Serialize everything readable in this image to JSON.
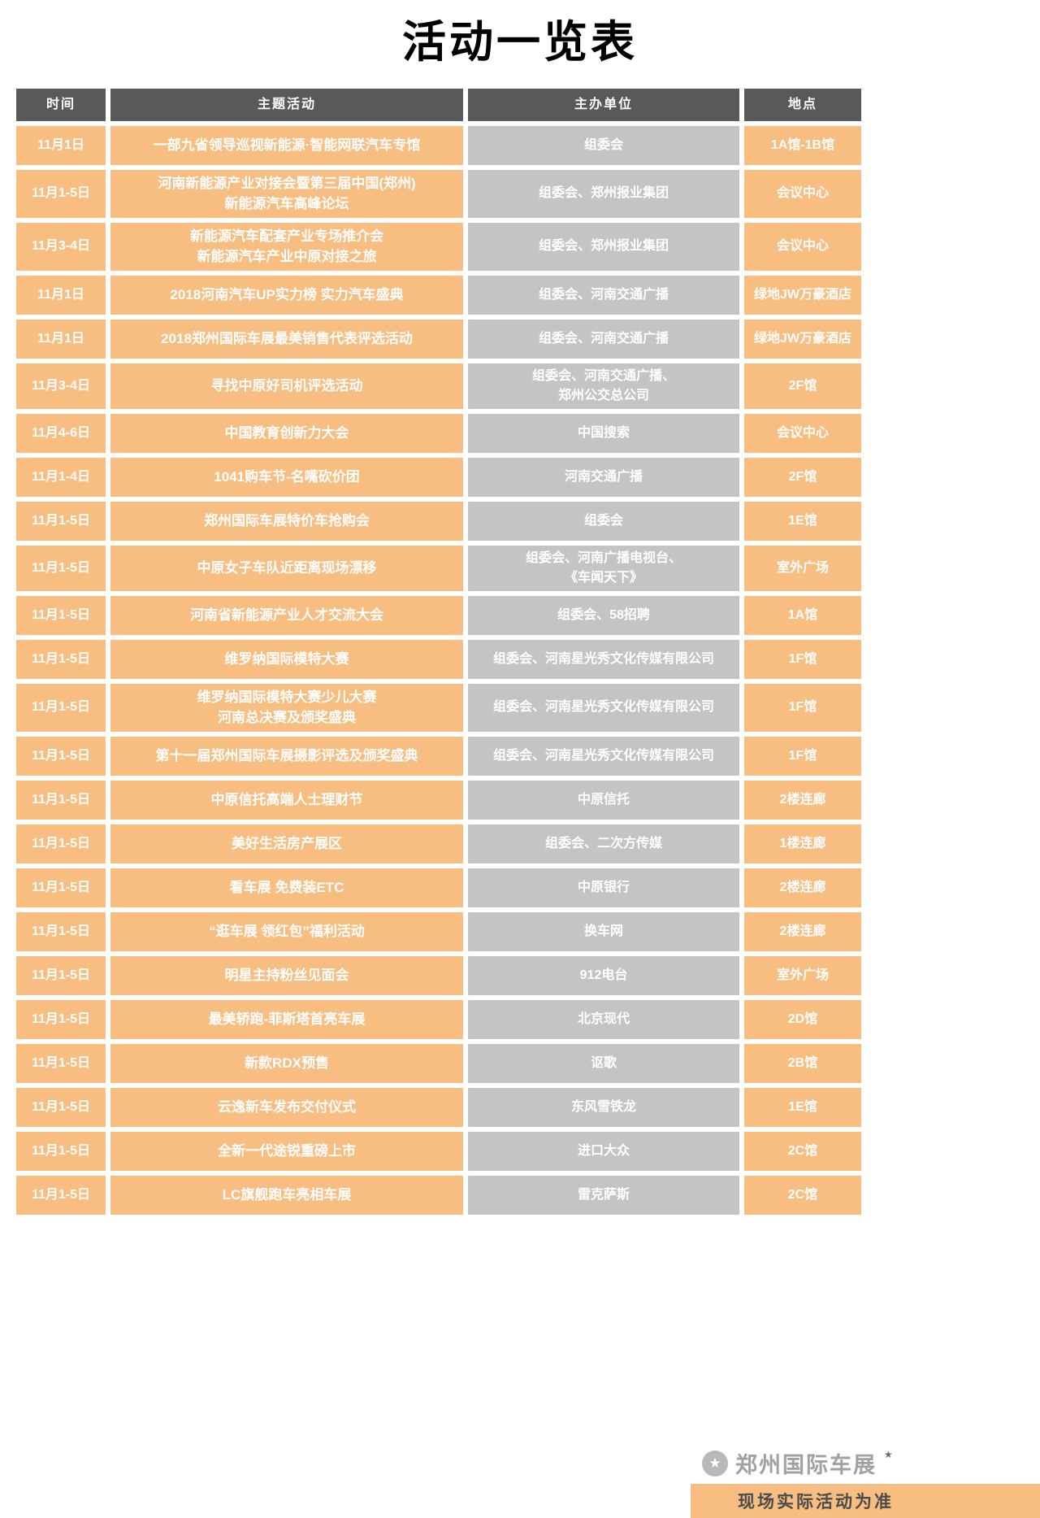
{
  "page": {
    "title": "活动一览表"
  },
  "colors": {
    "header_bg": "#58595b",
    "orange": "#f8bd80",
    "gray_cell": "#c3c4c6"
  },
  "table": {
    "headers": [
      "时间",
      "主题活动",
      "主办单位",
      "地点"
    ],
    "rows": [
      {
        "time": "11月1日",
        "activity": "一部九省领导巡视新能源·智能网联汽车专馆",
        "organizer": "组委会",
        "location": "1A馆-1B馆"
      },
      {
        "time": "11月1-5日",
        "activity": "河南新能源产业对接会暨第三届中国(郑州)\n新能源汽车高峰论坛",
        "organizer": "组委会、郑州报业集团",
        "location": "会议中心"
      },
      {
        "time": "11月3-4日",
        "activity": "新能源汽车配套产业专场推介会\n新能源汽车产业中原对接之旅",
        "organizer": "组委会、郑州报业集团",
        "location": "会议中心"
      },
      {
        "time": "11月1日",
        "activity": "2018河南汽车UP实力榜 实力汽车盛典",
        "organizer": "组委会、河南交通广播",
        "location": "绿地JW万豪酒店"
      },
      {
        "time": "11月1日",
        "activity": "2018郑州国际车展最美销售代表评选活动",
        "organizer": "组委会、河南交通广播",
        "location": "绿地JW万豪酒店"
      },
      {
        "time": "11月3-4日",
        "activity": "寻找中原好司机评选活动",
        "organizer": "组委会、河南交通广播、\n郑州公交总公司",
        "location": "2F馆"
      },
      {
        "time": "11月4-6日",
        "activity": "中国教育创新力大会",
        "organizer": "中国搜索",
        "location": "会议中心"
      },
      {
        "time": "11月1-4日",
        "activity": "1041购车节-名嘴砍价团",
        "organizer": "河南交通广播",
        "location": "2F馆"
      },
      {
        "time": "11月1-5日",
        "activity": "郑州国际车展特价车抢购会",
        "organizer": "组委会",
        "location": "1E馆"
      },
      {
        "time": "11月1-5日",
        "activity": "中原女子车队近距离现场漂移",
        "organizer": "组委会、河南广播电视台、\n《车闻天下》",
        "location": "室外广场"
      },
      {
        "time": "11月1-5日",
        "activity": "河南省新能源产业人才交流大会",
        "organizer": "组委会、58招聘",
        "location": "1A馆"
      },
      {
        "time": "11月1-5日",
        "activity": "维罗纳国际模特大赛",
        "organizer": "组委会、河南星光秀文化传媒有限公司",
        "location": "1F馆"
      },
      {
        "time": "11月1-5日",
        "activity": "维罗纳国际模特大赛少儿大赛\n河南总决赛及颁奖盛典",
        "organizer": "组委会、河南星光秀文化传媒有限公司",
        "location": "1F馆"
      },
      {
        "time": "11月1-5日",
        "activity": "第十一届郑州国际车展摄影评选及颁奖盛典",
        "organizer": "组委会、河南星光秀文化传媒有限公司",
        "location": "1F馆"
      },
      {
        "time": "11月1-5日",
        "activity": "中原信托高端人士理财节",
        "organizer": "中原信托",
        "location": "2楼连廊"
      },
      {
        "time": "11月1-5日",
        "activity": "美好生活房产展区",
        "organizer": "组委会、二次方传媒",
        "location": "1楼连廊"
      },
      {
        "time": "11月1-5日",
        "activity": "看车展 免费装ETC",
        "organizer": "中原银行",
        "location": "2楼连廊"
      },
      {
        "time": "11月1-5日",
        "activity": "“逛车展 领红包”福利活动",
        "organizer": "换车网",
        "location": "2楼连廊"
      },
      {
        "time": "11月1-5日",
        "activity": "明星主持粉丝见面会",
        "organizer": "912电台",
        "location": "室外广场"
      },
      {
        "time": "11月1-5日",
        "activity": "最美轿跑-菲斯塔首亮车展",
        "organizer": "北京现代",
        "location": "2D馆"
      },
      {
        "time": "11月1-5日",
        "activity": "新款RDX预售",
        "organizer": "讴歌",
        "location": "2B馆"
      },
      {
        "time": "11月1-5日",
        "activity": "云逸新车发布交付仪式",
        "organizer": "东风雪铁龙",
        "location": "1E馆"
      },
      {
        "time": "11月1-5日",
        "activity": "全新一代途锐重磅上市",
        "organizer": "进口大众",
        "location": "2C馆"
      },
      {
        "time": "11月1-5日",
        "activity": "LC旗舰跑车亮相车展",
        "organizer": "雷克萨斯",
        "location": "2C馆"
      }
    ]
  },
  "footer": {
    "brand": "郑州国际车展",
    "star_icon": "★",
    "note": "现场实际活动为准"
  }
}
